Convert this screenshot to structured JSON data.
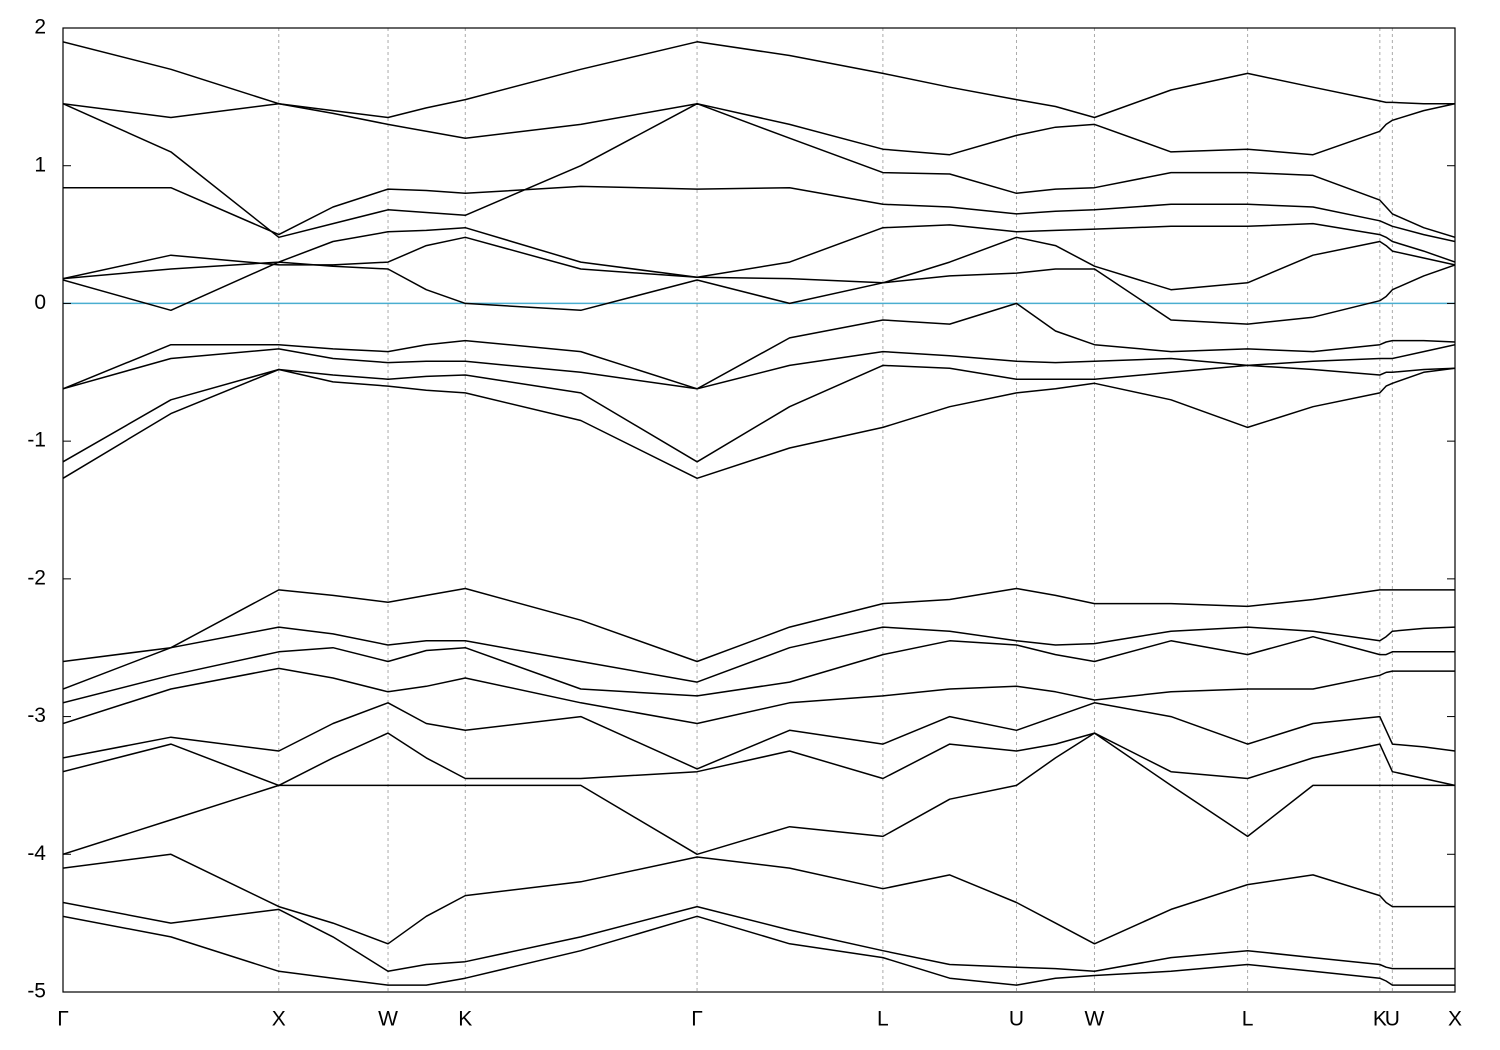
{
  "chart_data": {
    "type": "line",
    "x": [
      0,
      0.0775,
      0.155,
      0.194,
      0.2335,
      0.261,
      0.289,
      0.372,
      0.4555,
      0.522,
      0.589,
      0.637,
      0.685,
      0.713,
      0.741,
      0.796,
      0.851,
      0.898,
      0.946,
      0.9505,
      0.955,
      0.9775,
      1
    ],
    "xlim": [
      0,
      1
    ],
    "xticks": [
      {
        "value": 0,
        "label": "Γ"
      },
      {
        "value": 0.155,
        "label": "X"
      },
      {
        "value": 0.2335,
        "label": "W"
      },
      {
        "value": 0.289,
        "label": "K"
      },
      {
        "value": 0.4555,
        "label": "Γ"
      },
      {
        "value": 0.589,
        "label": "L"
      },
      {
        "value": 0.685,
        "label": "U"
      },
      {
        "value": 0.741,
        "label": "W"
      },
      {
        "value": 0.851,
        "label": "L"
      },
      {
        "value": 0.946,
        "label": "K"
      },
      {
        "value": 0.955,
        "label": "U"
      },
      {
        "value": 1,
        "label": "X"
      }
    ],
    "ylim": [
      -5,
      2
    ],
    "yticks": [
      -5,
      -4,
      -3,
      -2,
      -1,
      0,
      1,
      2
    ],
    "grid": true,
    "fermi_level": {
      "value": 0,
      "color": "#4aaed0"
    },
    "series": [
      {
        "color": "#000000",
        "values": [
          1.9,
          1.7,
          1.45,
          1.4,
          1.35,
          1.42,
          1.48,
          1.7,
          1.9,
          1.8,
          1.67,
          1.57,
          1.48,
          1.43,
          1.35,
          1.55,
          1.67,
          1.57,
          1.47,
          1.46,
          1.46,
          1.45,
          1.45
        ]
      },
      {
        "color": "#000000",
        "values": [
          1.45,
          1.35,
          1.45,
          1.38,
          1.3,
          1.25,
          1.2,
          1.3,
          1.45,
          1.3,
          1.12,
          1.08,
          1.22,
          1.28,
          1.3,
          1.1,
          1.12,
          1.08,
          1.25,
          1.3,
          1.33,
          1.4,
          1.45
        ]
      },
      {
        "color": "#000000",
        "values": [
          1.45,
          1.1,
          0.48,
          0.58,
          0.68,
          0.66,
          0.64,
          1.0,
          1.45,
          1.2,
          0.95,
          0.94,
          0.8,
          0.83,
          0.84,
          0.95,
          0.95,
          0.93,
          0.75,
          0.7,
          0.65,
          0.55,
          0.48
        ]
      },
      {
        "color": "#000000",
        "values": [
          0.84,
          0.84,
          0.5,
          0.7,
          0.83,
          0.82,
          0.8,
          0.85,
          0.83,
          0.84,
          0.72,
          0.7,
          0.65,
          0.67,
          0.68,
          0.72,
          0.72,
          0.7,
          0.6,
          0.58,
          0.56,
          0.5,
          0.45
        ]
      },
      {
        "color": "#000000",
        "values": [
          0.18,
          0.25,
          0.3,
          0.45,
          0.52,
          0.53,
          0.55,
          0.3,
          0.19,
          0.3,
          0.55,
          0.57,
          0.52,
          0.53,
          0.54,
          0.56,
          0.56,
          0.58,
          0.5,
          0.48,
          0.45,
          0.38,
          0.3
        ]
      },
      {
        "color": "#000000",
        "values": [
          0.18,
          0.35,
          0.28,
          0.28,
          0.3,
          0.42,
          0.48,
          0.25,
          0.19,
          0.18,
          0.15,
          0.3,
          0.48,
          0.42,
          0.27,
          0.1,
          0.15,
          0.35,
          0.45,
          0.42,
          0.38,
          0.33,
          0.28
        ]
      },
      {
        "color": "#000000",
        "values": [
          0.17,
          -0.05,
          0.3,
          0.27,
          0.25,
          0.1,
          0.0,
          -0.05,
          0.17,
          0.0,
          0.15,
          0.2,
          0.22,
          0.25,
          0.25,
          -0.12,
          -0.15,
          -0.1,
          0.02,
          0.05,
          0.1,
          0.2,
          0.28
        ]
      },
      {
        "color": "#000000",
        "values": [
          -0.62,
          -0.3,
          -0.3,
          -0.33,
          -0.35,
          -0.3,
          -0.27,
          -0.35,
          -0.62,
          -0.25,
          -0.12,
          -0.15,
          0.0,
          -0.2,
          -0.3,
          -0.35,
          -0.33,
          -0.35,
          -0.3,
          -0.28,
          -0.27,
          -0.27,
          -0.28
        ]
      },
      {
        "color": "#000000",
        "values": [
          -0.62,
          -0.4,
          -0.33,
          -0.4,
          -0.43,
          -0.42,
          -0.42,
          -0.5,
          -0.62,
          -0.45,
          -0.35,
          -0.38,
          -0.42,
          -0.43,
          -0.42,
          -0.4,
          -0.45,
          -0.42,
          -0.4,
          -0.4,
          -0.4,
          -0.35,
          -0.3
        ]
      },
      {
        "color": "#000000",
        "values": [
          -1.15,
          -0.7,
          -0.48,
          -0.52,
          -0.55,
          -0.53,
          -0.52,
          -0.65,
          -1.15,
          -0.75,
          -0.45,
          -0.47,
          -0.55,
          -0.55,
          -0.55,
          -0.5,
          -0.45,
          -0.48,
          -0.52,
          -0.5,
          -0.5,
          -0.48,
          -0.47
        ]
      },
      {
        "color": "#000000",
        "values": [
          -1.27,
          -0.8,
          -0.48,
          -0.57,
          -0.6,
          -0.63,
          -0.65,
          -0.85,
          -1.27,
          -1.05,
          -0.9,
          -0.75,
          -0.65,
          -0.62,
          -0.58,
          -0.7,
          -0.9,
          -0.75,
          -0.65,
          -0.6,
          -0.58,
          -0.5,
          -0.47
        ]
      },
      {
        "color": "#000000",
        "values": [
          -2.6,
          -2.5,
          -2.08,
          -2.12,
          -2.17,
          -2.12,
          -2.07,
          -2.3,
          -2.6,
          -2.35,
          -2.18,
          -2.15,
          -2.07,
          -2.12,
          -2.18,
          -2.18,
          -2.2,
          -2.15,
          -2.08,
          -2.08,
          -2.08,
          -2.08,
          -2.08
        ]
      },
      {
        "color": "#000000",
        "values": [
          -2.8,
          -2.5,
          -2.35,
          -2.4,
          -2.48,
          -2.45,
          -2.45,
          -2.6,
          -2.75,
          -2.5,
          -2.35,
          -2.38,
          -2.45,
          -2.48,
          -2.47,
          -2.38,
          -2.35,
          -2.38,
          -2.45,
          -2.42,
          -2.38,
          -2.36,
          -2.35
        ]
      },
      {
        "color": "#000000",
        "values": [
          -2.9,
          -2.7,
          -2.53,
          -2.5,
          -2.6,
          -2.52,
          -2.5,
          -2.8,
          -2.85,
          -2.75,
          -2.55,
          -2.45,
          -2.48,
          -2.55,
          -2.6,
          -2.45,
          -2.55,
          -2.42,
          -2.55,
          -2.55,
          -2.53,
          -2.53,
          -2.53
        ]
      },
      {
        "color": "#000000",
        "values": [
          -3.05,
          -2.8,
          -2.65,
          -2.72,
          -2.82,
          -2.78,
          -2.72,
          -2.9,
          -3.05,
          -2.9,
          -2.85,
          -2.8,
          -2.78,
          -2.82,
          -2.88,
          -2.82,
          -2.8,
          -2.8,
          -2.7,
          -2.68,
          -2.67,
          -2.67,
          -2.67
        ]
      },
      {
        "color": "#000000",
        "values": [
          -3.3,
          -3.15,
          -3.25,
          -3.05,
          -2.9,
          -3.05,
          -3.1,
          -3.0,
          -3.38,
          -3.1,
          -3.2,
          -3.0,
          -3.1,
          -3.0,
          -2.9,
          -3.0,
          -3.2,
          -3.05,
          -3.0,
          -3.1,
          -3.2,
          -3.22,
          -3.25
        ]
      },
      {
        "color": "#000000",
        "values": [
          -3.4,
          -3.2,
          -3.5,
          -3.3,
          -3.12,
          -3.3,
          -3.45,
          -3.45,
          -3.4,
          -3.25,
          -3.45,
          -3.2,
          -3.25,
          -3.2,
          -3.12,
          -3.4,
          -3.45,
          -3.3,
          -3.2,
          -3.3,
          -3.4,
          -3.45,
          -3.5
        ]
      },
      {
        "color": "#000000",
        "values": [
          -4.0,
          -3.75,
          -3.5,
          -3.5,
          -3.5,
          -3.5,
          -3.5,
          -3.5,
          -4.0,
          -3.8,
          -3.87,
          -3.6,
          -3.5,
          -3.3,
          -3.12,
          -3.5,
          -3.87,
          -3.5,
          -3.5,
          -3.5,
          -3.5,
          -3.5,
          -3.5
        ]
      },
      {
        "color": "#000000",
        "values": [
          -4.1,
          -4.0,
          -4.38,
          -4.5,
          -4.65,
          -4.45,
          -4.3,
          -4.2,
          -4.02,
          -4.1,
          -4.25,
          -4.15,
          -4.35,
          -4.5,
          -4.65,
          -4.4,
          -4.22,
          -4.15,
          -4.3,
          -4.35,
          -4.38,
          -4.38,
          -4.38
        ]
      },
      {
        "color": "#000000",
        "values": [
          -4.35,
          -4.5,
          -4.4,
          -4.6,
          -4.85,
          -4.8,
          -4.78,
          -4.6,
          -4.38,
          -4.55,
          -4.7,
          -4.8,
          -4.82,
          -4.83,
          -4.85,
          -4.75,
          -4.7,
          -4.75,
          -4.8,
          -4.82,
          -4.83,
          -4.83,
          -4.83
        ]
      },
      {
        "color": "#000000",
        "values": [
          -4.45,
          -4.6,
          -4.85,
          -4.9,
          -4.95,
          -4.95,
          -4.9,
          -4.7,
          -4.45,
          -4.65,
          -4.75,
          -4.9,
          -4.95,
          -4.9,
          -4.88,
          -4.85,
          -4.8,
          -4.85,
          -4.9,
          -4.92,
          -4.95,
          -4.95,
          -4.95
        ]
      }
    ]
  }
}
